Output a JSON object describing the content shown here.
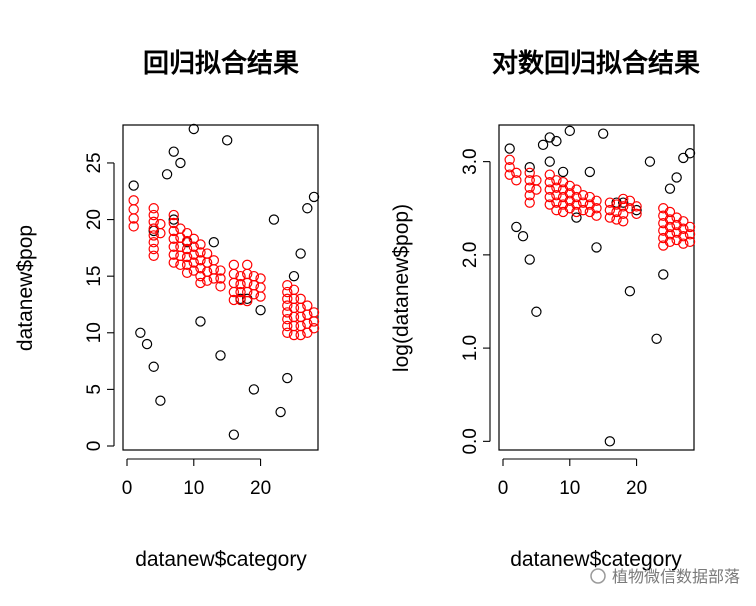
{
  "charts": [
    {
      "title": "回归拟合结果",
      "xlabel": "datanew$category",
      "ylabel": "datanew$pop",
      "xlim": [
        0,
        28
      ],
      "ylim": [
        0,
        28
      ],
      "xticks": [
        0,
        10,
        20
      ],
      "xtick_labels": [
        "0",
        "10",
        "20"
      ],
      "yticks": [
        0,
        5,
        10,
        15,
        20,
        25
      ],
      "ytick_labels": [
        "0",
        "5",
        "10",
        "15",
        "20",
        "25"
      ],
      "colors": {
        "observed": "#000000",
        "fitted": "#ff0000"
      },
      "observed": [
        [
          1,
          23
        ],
        [
          2,
          10
        ],
        [
          3,
          9
        ],
        [
          4,
          7
        ],
        [
          5,
          4
        ],
        [
          6,
          24
        ],
        [
          7,
          26
        ],
        [
          8,
          25
        ],
        [
          10,
          28
        ],
        [
          11,
          11
        ],
        [
          13,
          18
        ],
        [
          14,
          8
        ],
        [
          15,
          27
        ],
        [
          16,
          1
        ],
        [
          17,
          13
        ],
        [
          18,
          13
        ],
        [
          19,
          5
        ],
        [
          20,
          12
        ],
        [
          22,
          20
        ],
        [
          23,
          3
        ],
        [
          24,
          6
        ],
        [
          25,
          15
        ],
        [
          26,
          17
        ],
        [
          27,
          21
        ],
        [
          28,
          22
        ],
        [
          4,
          19
        ],
        [
          7,
          20
        ],
        [
          9,
          18
        ]
      ],
      "fitted": [
        [
          1,
          21.7
        ],
        [
          1,
          20.9
        ],
        [
          1,
          20.1
        ],
        [
          1,
          19.4
        ],
        [
          4,
          21.0
        ],
        [
          4,
          20.4
        ],
        [
          4,
          19.8
        ],
        [
          4,
          19.2
        ],
        [
          4,
          18.6
        ],
        [
          4,
          18.0
        ],
        [
          4,
          17.4
        ],
        [
          4,
          16.8
        ],
        [
          5,
          19.6
        ],
        [
          5,
          18.8
        ],
        [
          7,
          20.4
        ],
        [
          7,
          19.7
        ],
        [
          7,
          19.0
        ],
        [
          7,
          18.3
        ],
        [
          7,
          17.6
        ],
        [
          7,
          16.9
        ],
        [
          7,
          16.2
        ],
        [
          8,
          19.2
        ],
        [
          8,
          18.4
        ],
        [
          8,
          17.6
        ],
        [
          8,
          16.8
        ],
        [
          8,
          16.0
        ],
        [
          9,
          18.8
        ],
        [
          9,
          18.1
        ],
        [
          9,
          17.4
        ],
        [
          9,
          16.7
        ],
        [
          9,
          16.0
        ],
        [
          9,
          15.3
        ],
        [
          10,
          18.3
        ],
        [
          10,
          17.6
        ],
        [
          10,
          16.9
        ],
        [
          10,
          16.2
        ],
        [
          10,
          15.5
        ],
        [
          11,
          17.8
        ],
        [
          11,
          17.1
        ],
        [
          11,
          16.4
        ],
        [
          11,
          15.7
        ],
        [
          11,
          15.0
        ],
        [
          11,
          14.4
        ],
        [
          12,
          17.0
        ],
        [
          12,
          16.2
        ],
        [
          12,
          15.4
        ],
        [
          12,
          14.6
        ],
        [
          13,
          16.4
        ],
        [
          13,
          15.6
        ],
        [
          13,
          14.8
        ],
        [
          14,
          15.5
        ],
        [
          14,
          14.8
        ],
        [
          14,
          14.1
        ],
        [
          16,
          16.0
        ],
        [
          16,
          15.2
        ],
        [
          16,
          14.4
        ],
        [
          16,
          13.6
        ],
        [
          16,
          12.9
        ],
        [
          17,
          15.0
        ],
        [
          17,
          14.3
        ],
        [
          17,
          13.6
        ],
        [
          17,
          12.9
        ],
        [
          18,
          16.0
        ],
        [
          18,
          15.2
        ],
        [
          18,
          14.4
        ],
        [
          18,
          13.6
        ],
        [
          18,
          12.8
        ],
        [
          19,
          15.0
        ],
        [
          19,
          14.2
        ],
        [
          19,
          13.4
        ],
        [
          20,
          14.8
        ],
        [
          20,
          14.0
        ],
        [
          20,
          13.2
        ],
        [
          24,
          14.2
        ],
        [
          24,
          13.6
        ],
        [
          24,
          13.0
        ],
        [
          24,
          12.4
        ],
        [
          24,
          11.8
        ],
        [
          24,
          11.2
        ],
        [
          24,
          10.6
        ],
        [
          24,
          10.0
        ],
        [
          25,
          13.8
        ],
        [
          25,
          13.0
        ],
        [
          25,
          12.2
        ],
        [
          25,
          11.4
        ],
        [
          25,
          10.6
        ],
        [
          25,
          9.8
        ],
        [
          26,
          13.0
        ],
        [
          26,
          12.2
        ],
        [
          26,
          11.4
        ],
        [
          26,
          10.6
        ],
        [
          26,
          9.8
        ],
        [
          27,
          12.4
        ],
        [
          27,
          11.6
        ],
        [
          27,
          10.8
        ],
        [
          27,
          10.0
        ],
        [
          28,
          11.8
        ],
        [
          28,
          11.0
        ],
        [
          28,
          10.4
        ]
      ]
    },
    {
      "title": "对数回归拟合结果",
      "xlabel": "datanew$category",
      "ylabel": "log(datanew$pop)",
      "xlim": [
        0,
        28
      ],
      "ylim": [
        -0.05,
        3.35
      ],
      "xticks": [
        0,
        10,
        20
      ],
      "xtick_labels": [
        "0",
        "10",
        "20"
      ],
      "yticks": [
        0,
        1,
        2,
        3
      ],
      "ytick_labels": [
        "0.0",
        "1.0",
        "2.0",
        "3.0"
      ],
      "colors": {
        "observed": "#000000",
        "fitted": "#ff0000"
      },
      "observed": [
        [
          1,
          3.14
        ],
        [
          2,
          2.3
        ],
        [
          3,
          2.2
        ],
        [
          4,
          1.95
        ],
        [
          5,
          1.39
        ],
        [
          6,
          3.18
        ],
        [
          7,
          3.26
        ],
        [
          8,
          3.22
        ],
        [
          10,
          3.33
        ],
        [
          11,
          2.4
        ],
        [
          13,
          2.89
        ],
        [
          14,
          2.08
        ],
        [
          15,
          3.3
        ],
        [
          16,
          0.0
        ],
        [
          17,
          2.56
        ],
        [
          18,
          2.56
        ],
        [
          19,
          1.61
        ],
        [
          20,
          2.48
        ],
        [
          22,
          3.0
        ],
        [
          23,
          1.1
        ],
        [
          24,
          1.79
        ],
        [
          25,
          2.71
        ],
        [
          26,
          2.83
        ],
        [
          27,
          3.04
        ],
        [
          28,
          3.09
        ],
        [
          4,
          2.94
        ],
        [
          7,
          3.0
        ],
        [
          9,
          2.89
        ]
      ],
      "fitted": [
        [
          1,
          3.02
        ],
        [
          1,
          2.94
        ],
        [
          1,
          2.86
        ],
        [
          2,
          2.88
        ],
        [
          2,
          2.8
        ],
        [
          4,
          2.88
        ],
        [
          4,
          2.8
        ],
        [
          4,
          2.72
        ],
        [
          4,
          2.64
        ],
        [
          4,
          2.56
        ],
        [
          5,
          2.8
        ],
        [
          5,
          2.7
        ],
        [
          7,
          2.86
        ],
        [
          7,
          2.78
        ],
        [
          7,
          2.7
        ],
        [
          7,
          2.62
        ],
        [
          7,
          2.54
        ],
        [
          8,
          2.8
        ],
        [
          8,
          2.72
        ],
        [
          8,
          2.64
        ],
        [
          8,
          2.56
        ],
        [
          8,
          2.48
        ],
        [
          9,
          2.78
        ],
        [
          9,
          2.7
        ],
        [
          9,
          2.62
        ],
        [
          9,
          2.54
        ],
        [
          9,
          2.46
        ],
        [
          10,
          2.74
        ],
        [
          10,
          2.66
        ],
        [
          10,
          2.58
        ],
        [
          10,
          2.5
        ],
        [
          11,
          2.7
        ],
        [
          11,
          2.62
        ],
        [
          11,
          2.54
        ],
        [
          11,
          2.46
        ],
        [
          12,
          2.64
        ],
        [
          12,
          2.56
        ],
        [
          12,
          2.48
        ],
        [
          13,
          2.62
        ],
        [
          13,
          2.54
        ],
        [
          13,
          2.46
        ],
        [
          14,
          2.58
        ],
        [
          14,
          2.5
        ],
        [
          14,
          2.42
        ],
        [
          16,
          2.56
        ],
        [
          16,
          2.48
        ],
        [
          16,
          2.4
        ],
        [
          17,
          2.54
        ],
        [
          17,
          2.46
        ],
        [
          17,
          2.38
        ],
        [
          18,
          2.6
        ],
        [
          18,
          2.52
        ],
        [
          18,
          2.44
        ],
        [
          18,
          2.36
        ],
        [
          19,
          2.58
        ],
        [
          19,
          2.5
        ],
        [
          20,
          2.52
        ],
        [
          20,
          2.44
        ],
        [
          24,
          2.5
        ],
        [
          24,
          2.42
        ],
        [
          24,
          2.34
        ],
        [
          24,
          2.26
        ],
        [
          24,
          2.18
        ],
        [
          24,
          2.1
        ],
        [
          25,
          2.46
        ],
        [
          25,
          2.38
        ],
        [
          25,
          2.3
        ],
        [
          25,
          2.22
        ],
        [
          25,
          2.14
        ],
        [
          26,
          2.4
        ],
        [
          26,
          2.32
        ],
        [
          26,
          2.24
        ],
        [
          26,
          2.16
        ],
        [
          27,
          2.36
        ],
        [
          27,
          2.28
        ],
        [
          27,
          2.2
        ],
        [
          27,
          2.12
        ],
        [
          28,
          2.3
        ],
        [
          28,
          2.22
        ],
        [
          28,
          2.14
        ]
      ]
    }
  ],
  "watermark": "植物微信数据部落"
}
